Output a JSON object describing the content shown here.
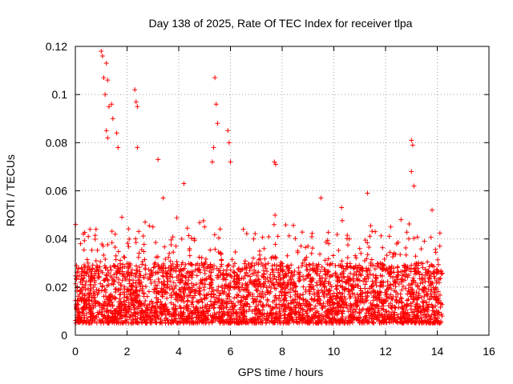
{
  "chart_data": {
    "type": "scatter",
    "title": "Day 138 of 2025, Rate Of TEC Index for receiver tlpa",
    "xlabel": "GPS time / hours",
    "ylabel": "ROTI / TECUs",
    "xlim": [
      0,
      16
    ],
    "ylim": [
      0,
      0.12
    ],
    "x_ticks": [
      0,
      2,
      4,
      6,
      8,
      10,
      12,
      14,
      16
    ],
    "x_tick_labels": [
      "0",
      "2",
      "4",
      "6",
      "8",
      "10",
      "12",
      "14",
      "16"
    ],
    "y_ticks": [
      0,
      0.02,
      0.04,
      0.06,
      0.08,
      0.1,
      0.12
    ],
    "y_tick_labels": [
      "0",
      "0.02",
      "0.04",
      "0.06",
      "0.08",
      "0.1",
      "0.12"
    ],
    "grid": true,
    "marker": "+",
    "series": [
      {
        "name": "ROTI",
        "color": "#ff0000",
        "x_range": [
          0,
          14.2
        ],
        "typical_range": [
          0.005,
          0.03
        ],
        "x": [
          1.0,
          1.05,
          1.1,
          1.2,
          1.25,
          1.15,
          1.3,
          1.4,
          1.45,
          1.6,
          1.65,
          1.2,
          1.25,
          2.3,
          2.35,
          2.4,
          2.4,
          3.2,
          3.4,
          4.2,
          5.4,
          5.45,
          5.5,
          5.9,
          5.95,
          5.35,
          5.3,
          6.0,
          7.7,
          7.75,
          9.5,
          10.3,
          11.3,
          13.0,
          13.05,
          13.0,
          13.1,
          12.6,
          13.8,
          0.2,
          0.5,
          0.8,
          1.8,
          2.7,
          3.0,
          4.6,
          5.0,
          6.5,
          6.9,
          7.3,
          8.2,
          8.6,
          9.0,
          9.8,
          10.6,
          11.0,
          11.6,
          12.2,
          12.9,
          13.5,
          14.1
        ],
        "y": [
          0.118,
          0.116,
          0.107,
          0.113,
          0.106,
          0.1,
          0.095,
          0.096,
          0.09,
          0.084,
          0.078,
          0.085,
          0.082,
          0.102,
          0.097,
          0.095,
          0.078,
          0.073,
          0.057,
          0.063,
          0.107,
          0.096,
          0.088,
          0.085,
          0.08,
          0.078,
          0.072,
          0.072,
          0.072,
          0.071,
          0.057,
          0.053,
          0.059,
          0.081,
          0.079,
          0.068,
          0.062,
          0.048,
          0.052,
          0.038,
          0.041,
          0.044,
          0.049,
          0.047,
          0.045,
          0.04,
          0.045,
          0.044,
          0.04,
          0.036,
          0.033,
          0.035,
          0.037,
          0.038,
          0.04,
          0.036,
          0.043,
          0.045,
          0.04,
          0.039,
          0.037
        ]
      }
    ]
  }
}
